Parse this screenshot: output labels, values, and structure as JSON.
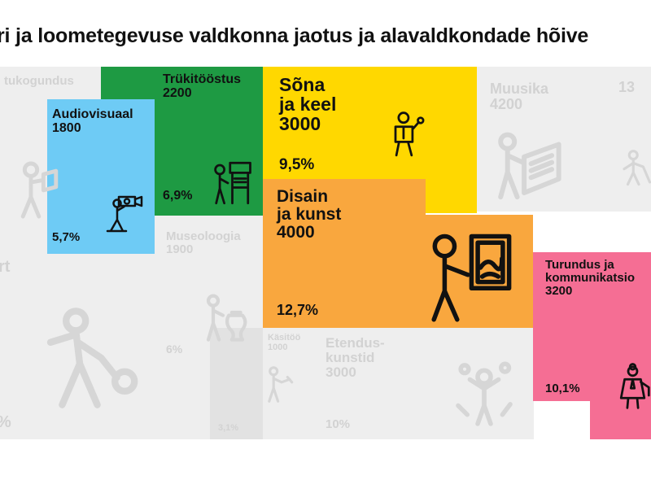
{
  "title": "ri ja loometegevuse valdkonna jaotus ja alavaldkondade hõive",
  "colors": {
    "background": "#ffffff",
    "muted_tile": "#eeeeee",
    "muted_tile_dark": "#e2e2e2",
    "muted_text": "#d2d2d2",
    "highlight_text": "#111111"
  },
  "chart_data": {
    "type": "table",
    "title": "ri ja loometegevuse valdkonna jaotus ja alavaldkondade hõive",
    "tiles": [
      {
        "id": "arhiivindus",
        "label": "tukogundus",
        "value": null,
        "share": "",
        "highlighted": false,
        "color": "#eeeeee",
        "icon": "reader-icon"
      },
      {
        "id": "trukitoostus",
        "label": "Trükitööstus",
        "value": "2200",
        "share": "6,9%",
        "highlighted": true,
        "color": "#1e9a43",
        "icon": "printer-operator-icon"
      },
      {
        "id": "audiovisuaal",
        "label": "Audiovisuaal",
        "value": "1800",
        "share": "5,7%",
        "highlighted": true,
        "color": "#6ecbf5",
        "icon": "camera-operator-icon"
      },
      {
        "id": "sona-ja-keel",
        "label": "Sõna\nja keel",
        "value": "3000",
        "share": "9,5%",
        "highlighted": true,
        "color": "#ffd800",
        "icon": "speaker-icon"
      },
      {
        "id": "muusika",
        "label": "Muusika",
        "value": "4200",
        "share": "",
        "highlighted": false,
        "color": "#eeeeee",
        "icon": "pianist-icon"
      },
      {
        "id": "arhitektuur",
        "label": "13",
        "value": null,
        "share": "",
        "highlighted": false,
        "color": "#eeeeee",
        "icon": "architect-icon"
      },
      {
        "id": "disain-ja-kunst",
        "label": "Disain\nja kunst",
        "value": "4000",
        "share": "12,7%",
        "highlighted": true,
        "color": "#f9a73e",
        "icon": "painter-icon"
      },
      {
        "id": "museoloogia",
        "label": "Museoloogia",
        "value": "1900",
        "share": "6%",
        "highlighted": false,
        "color": "#eeeeee",
        "icon": "museum-visitor-icon"
      },
      {
        "id": "kasitoo",
        "label": "Käsitöö",
        "value": "1000",
        "share": "3,1%",
        "highlighted": false,
        "color": "#e2e2e2",
        "icon": "craftsman-icon"
      },
      {
        "id": "etenduskunstid",
        "label": "Etendus-\nkunstid",
        "value": "3000",
        "share": "10%",
        "highlighted": false,
        "color": "#eeeeee",
        "icon": "juggler-icon"
      },
      {
        "id": "turundus",
        "label": "Turundus ja\nkommunikatsio",
        "value": "3200",
        "share": "10,1%",
        "highlighted": true,
        "color": "#f56e94",
        "icon": "marketer-icon"
      },
      {
        "id": "sport",
        "label": "rt",
        "value": null,
        "share": "%",
        "highlighted": false,
        "color": "#eeeeee",
        "icon": "athlete-icon"
      }
    ]
  }
}
